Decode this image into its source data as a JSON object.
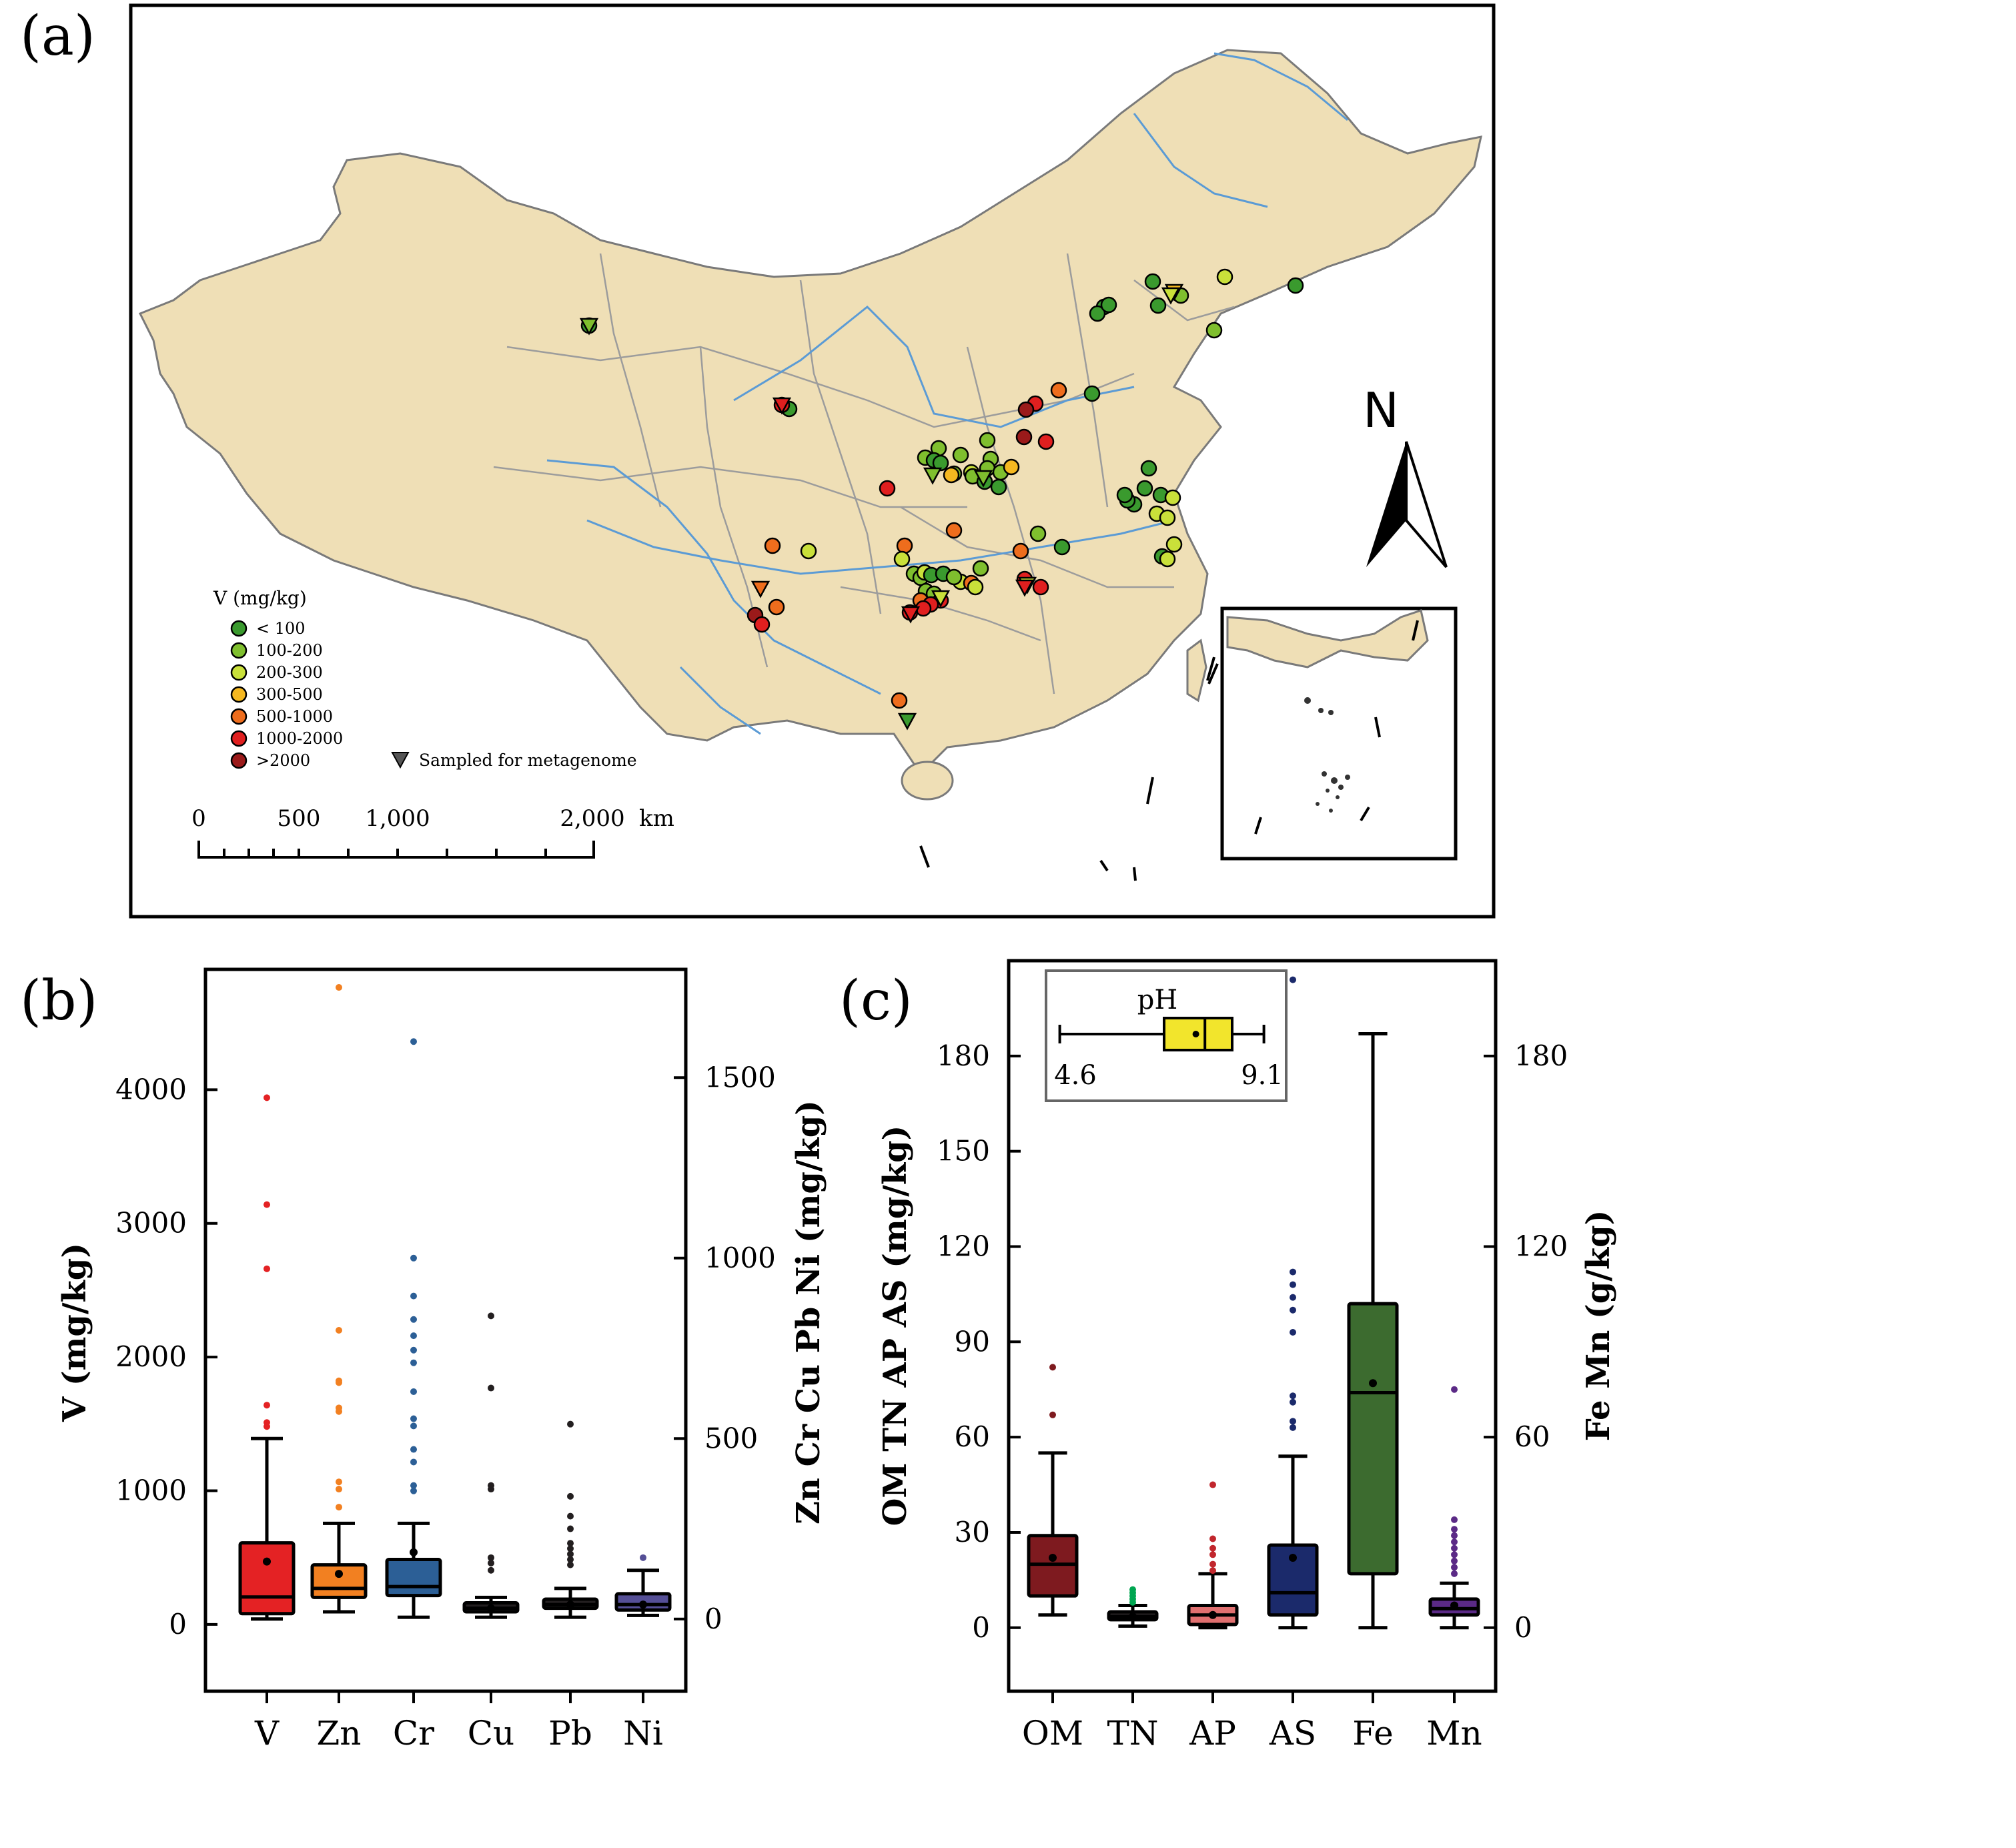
{
  "panel_a": {
    "label": "(a)",
    "legend": {
      "title": "V (mg/kg)",
      "classes": [
        {
          "label": "< 100",
          "color": "#3a9a2e"
        },
        {
          "label": "100-200",
          "color": "#7fbf2e"
        },
        {
          "label": "200-300",
          "color": "#c9e03a"
        },
        {
          "label": "300-500",
          "color": "#f5b820"
        },
        {
          "label": "500-1000",
          "color": "#ee6d1d"
        },
        {
          "label": "1000-2000",
          "color": "#e01f1f"
        },
        {
          "label": ">2000",
          "color": "#9b1a1a"
        }
      ],
      "metagenome_label": "Sampled for metagenome"
    },
    "scalebar": {
      "ticks": [
        "0",
        "500",
        "1,000",
        "2,000"
      ],
      "unit": "km"
    },
    "north_label": "N",
    "colors": {
      "land": "#efdfb6",
      "water": "#5b9bd5",
      "border": "#9c9c9c"
    }
  },
  "chart_data": [
    {
      "type": "box",
      "panel": "(b)",
      "ylabel": "V (mg/kg)",
      "ylabel2": "Zn Cr Cu Pb Ni (mg/kg)",
      "ylim": [
        -500,
        4900
      ],
      "y_ticks": [
        0,
        1000,
        2000,
        3000,
        4000
      ],
      "ylim2": [
        -200,
        1800
      ],
      "y2_ticks": [
        0,
        500,
        1000,
        1500
      ],
      "categories": [
        "V",
        "Zn",
        "Cr",
        "Cu",
        "Pb",
        "Ni"
      ],
      "series": [
        {
          "cat": "V",
          "axis": "left",
          "color": "#e42224",
          "whisker": [
            40,
            1390
          ],
          "q1": 80,
          "median": 205,
          "q3": 610,
          "mean": 470,
          "outliers": [
            1480,
            1510,
            1640,
            2660,
            3140,
            3940
          ]
        },
        {
          "cat": "Zn",
          "axis": "right",
          "color": "#f28021",
          "whisker": [
            20,
            265
          ],
          "q1": 60,
          "median": 85,
          "q3": 150,
          "mean": 125,
          "outliers": [
            310,
            360,
            380,
            575,
            585,
            655,
            660,
            800,
            1750
          ]
        },
        {
          "cat": "Cr",
          "axis": "right",
          "color": "#2c5f96",
          "whisker": [
            5,
            265
          ],
          "q1": 65,
          "median": 90,
          "q3": 165,
          "mean": 185,
          "outliers": [
            355,
            370,
            435,
            470,
            535,
            555,
            630,
            710,
            745,
            785,
            830,
            895,
            1000,
            1600
          ]
        },
        {
          "cat": "Cu",
          "axis": "right",
          "color": "#231f20",
          "whisker": [
            5,
            60
          ],
          "q1": 20,
          "median": 30,
          "q3": 45,
          "mean": 30,
          "outliers": [
            135,
            155,
            170,
            360,
            370,
            640,
            840
          ]
        },
        {
          "cat": "Pb",
          "axis": "right",
          "color": "#231f20",
          "whisker": [
            5,
            85
          ],
          "q1": 30,
          "median": 40,
          "q3": 55,
          "mean": 40,
          "outliers": [
            150,
            165,
            180,
            195,
            210,
            250,
            285,
            340,
            540
          ]
        },
        {
          "cat": "Ni",
          "axis": "right",
          "color": "#554f96",
          "whisker": [
            10,
            135
          ],
          "q1": 25,
          "median": 40,
          "q3": 70,
          "mean": 40,
          "outliers": [
            170
          ]
        }
      ]
    },
    {
      "type": "box",
      "panel": "(c)",
      "ylabel": "OM TN AP AS  (mg/kg)",
      "ylabel2": "Fe Mn  (g/kg)",
      "ylim": [
        -20,
        210
      ],
      "y_ticks": [
        0,
        30,
        60,
        90,
        120,
        150,
        180
      ],
      "ylim2": [
        -20,
        210
      ],
      "y2_ticks": [
        0,
        60,
        120,
        180
      ],
      "categories": [
        "OM",
        "TN",
        "AP",
        "AS",
        "Fe",
        "Mn"
      ],
      "series": [
        {
          "cat": "OM",
          "axis": "left",
          "color": "#7e1a1f",
          "whisker": [
            4,
            55
          ],
          "q1": 10,
          "median": 20,
          "q3": 29,
          "mean": 22,
          "outliers": [
            67,
            82
          ]
        },
        {
          "cat": "TN",
          "axis": "left",
          "color": "#00a651",
          "box_fill": "#231f20",
          "whisker": [
            0.5,
            7
          ],
          "q1": 2.5,
          "median": 3.5,
          "q3": 5,
          "mean": 3.5,
          "outliers": [
            8,
            9,
            10,
            11,
            12
          ]
        },
        {
          "cat": "AP",
          "axis": "left",
          "color": "#c1272d",
          "box_fill": "#e07070",
          "whisker": [
            0,
            17
          ],
          "q1": 1,
          "median": 4,
          "q3": 7,
          "mean": 4,
          "outliers": [
            18,
            20,
            23,
            25,
            28,
            45
          ]
        },
        {
          "cat": "AS",
          "axis": "left",
          "color": "#1b2a6b",
          "box_fill": "#1b2a6b",
          "whisker": [
            0,
            54
          ],
          "q1": 4,
          "median": 11,
          "q3": 26,
          "mean": 22,
          "outliers": [
            63,
            65,
            71,
            73,
            93,
            100,
            104,
            108,
            112,
            204
          ]
        },
        {
          "cat": "Fe",
          "axis": "right",
          "color": "#3c6b2f",
          "whisker": [
            0,
            187
          ],
          "q1": 17,
          "median": 74,
          "q3": 102,
          "mean": 77,
          "outliers": []
        },
        {
          "cat": "Mn",
          "axis": "right",
          "color": "#5b2a86",
          "whisker": [
            0,
            14
          ],
          "q1": 4,
          "median": 6,
          "q3": 9,
          "mean": 7,
          "outliers": [
            17,
            19,
            21,
            23,
            25,
            27,
            29,
            31,
            34,
            75
          ]
        }
      ],
      "inset": {
        "label": "pH",
        "min": 4.6,
        "max": 9.1,
        "q1": 6.9,
        "median": 7.8,
        "q3": 8.4,
        "mean": 7.6,
        "color": "#f2e52c",
        "min_label": "4.6",
        "max_label": "9.1"
      }
    }
  ]
}
